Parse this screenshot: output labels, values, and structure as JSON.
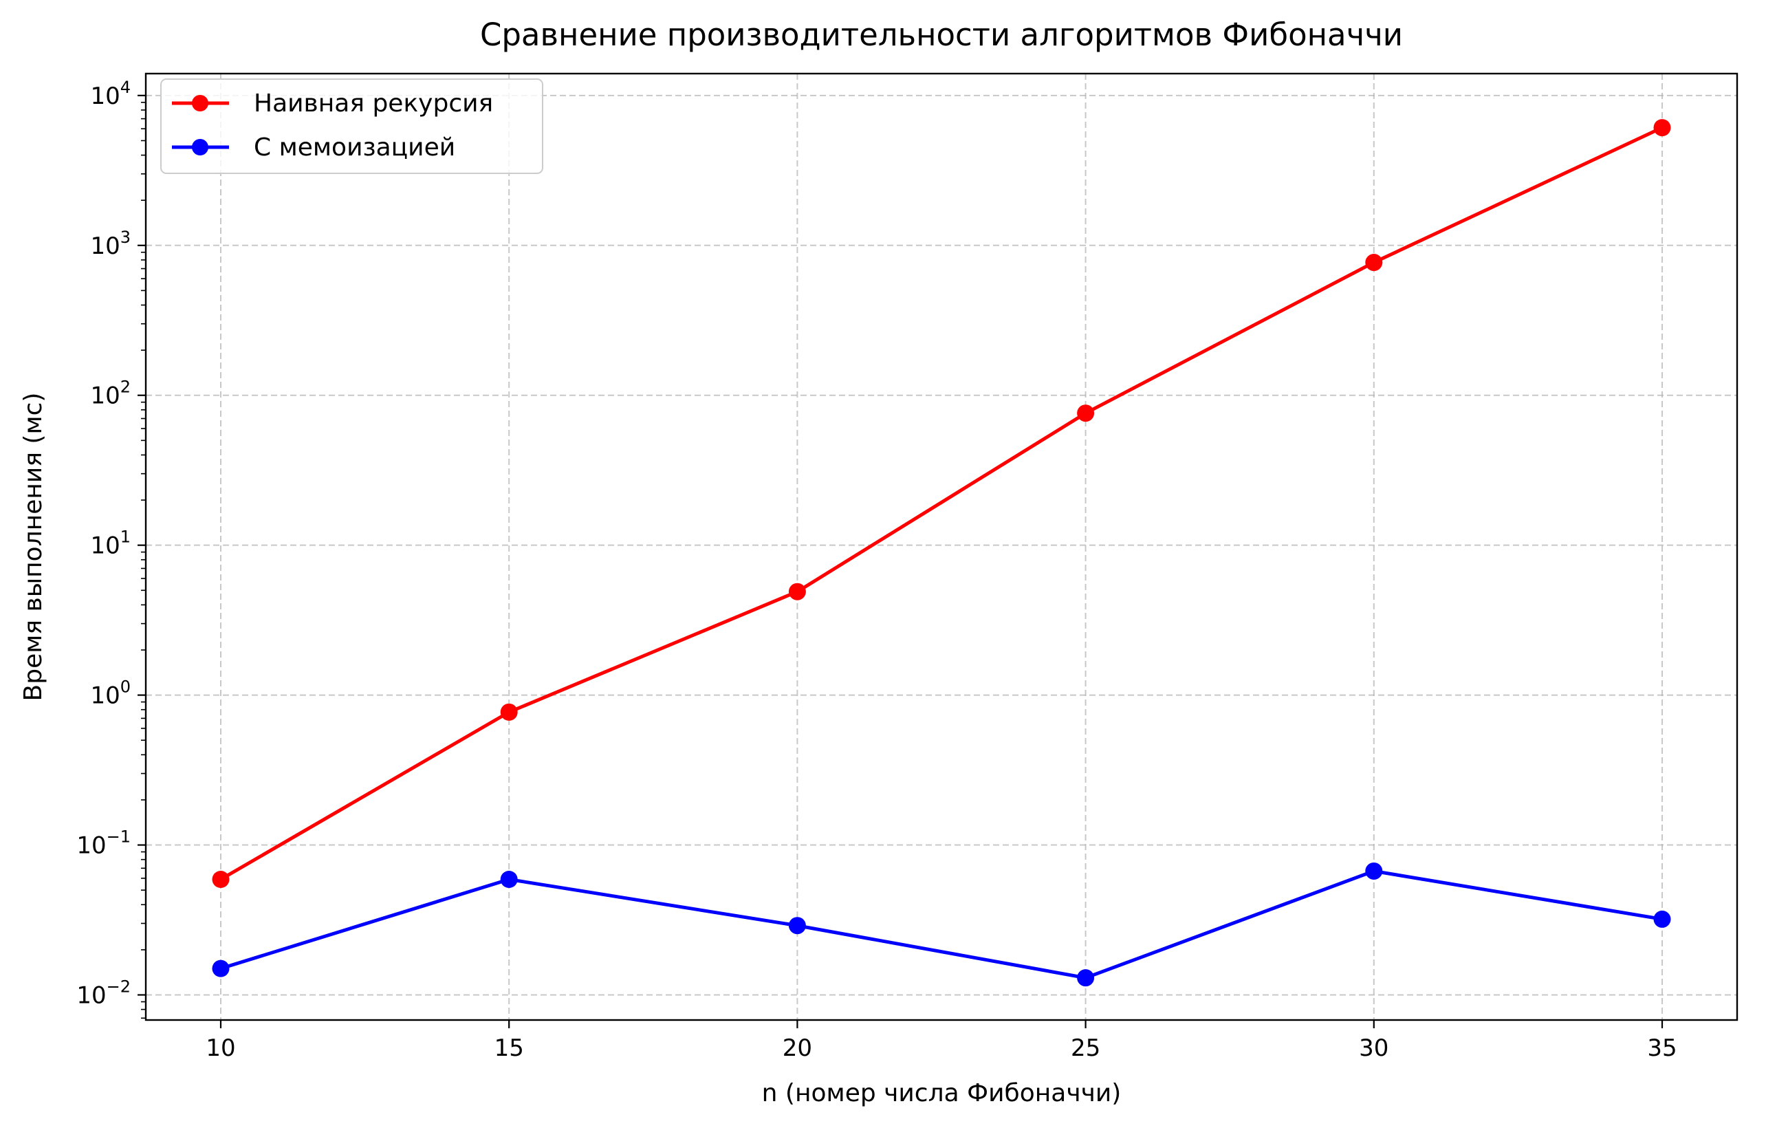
{
  "chart_data": {
    "type": "line",
    "title": "Сравнение производительности алгоритмов Фибоначчи",
    "xlabel": "n (номер числа Фибоначчи)",
    "ylabel": "Время выполнения (мс)",
    "x": [
      10,
      15,
      20,
      25,
      30,
      35
    ],
    "x_ticks": [
      "10",
      "15",
      "20",
      "25",
      "30",
      "35"
    ],
    "xlim": [
      8.7,
      36.3
    ],
    "y_scale": "log",
    "ylim": [
      0.0068,
      14000
    ],
    "y_ticks": [
      {
        "value": 0.01,
        "base": "10",
        "exp": "−2"
      },
      {
        "value": 0.1,
        "base": "10",
        "exp": "−1"
      },
      {
        "value": 1,
        "base": "10",
        "exp": "0"
      },
      {
        "value": 10,
        "base": "10",
        "exp": "1"
      },
      {
        "value": 100,
        "base": "10",
        "exp": "2"
      },
      {
        "value": 1000,
        "base": "10",
        "exp": "3"
      },
      {
        "value": 10000,
        "base": "10",
        "exp": "4"
      }
    ],
    "grid": true,
    "legend_position": "top-left",
    "series": [
      {
        "name": "Наивная рекурсия",
        "color": "#ff0000",
        "values": [
          0.059,
          0.77,
          4.9,
          76,
          770,
          6100
        ]
      },
      {
        "name": "С мемоизацией",
        "color": "#0000ff",
        "values": [
          0.015,
          0.059,
          0.029,
          0.013,
          0.067,
          0.032
        ]
      }
    ]
  }
}
